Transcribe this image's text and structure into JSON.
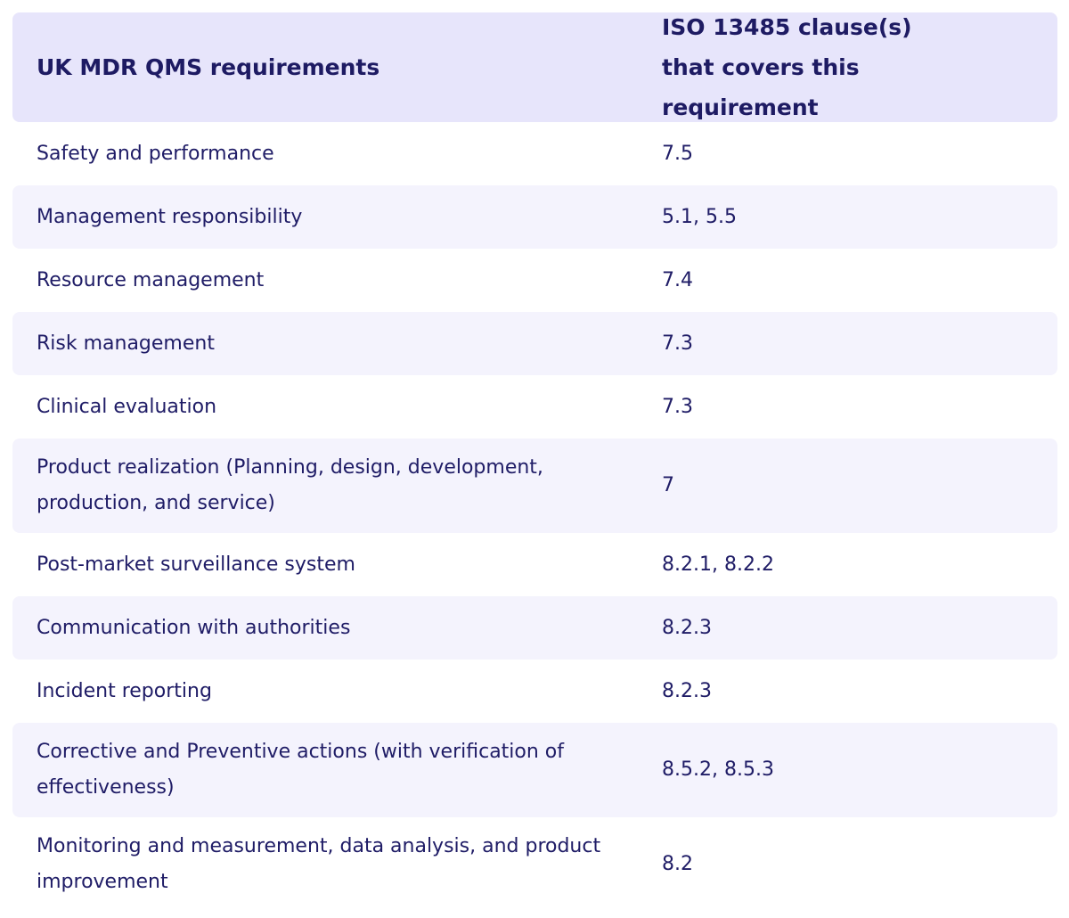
{
  "table": {
    "headers": {
      "requirement": "UK MDR QMS requirements",
      "clause": "ISO 13485 clause(s) that covers this requirement"
    },
    "rows": [
      {
        "requirement": "Safety and performance",
        "clause": "7.5"
      },
      {
        "requirement": "Management responsibility",
        "clause": "5.1, 5.5"
      },
      {
        "requirement": "Resource management",
        "clause": "7.4"
      },
      {
        "requirement": "Risk management",
        "clause": "7.3"
      },
      {
        "requirement": "Clinical evaluation",
        "clause": "7.3"
      },
      {
        "requirement": "Product realization (Planning, design, development, production, and service)",
        "clause": "7"
      },
      {
        "requirement": "Post-market surveillance system",
        "clause": "8.2.1, 8.2.2"
      },
      {
        "requirement": "Communication with authorities",
        "clause": "8.2.3"
      },
      {
        "requirement": "Incident reporting",
        "clause": "8.2.3"
      },
      {
        "requirement": "Corrective and Preventive actions (with verification of effectiveness)",
        "clause": "8.5.2, 8.5.3"
      },
      {
        "requirement": "Monitoring and measurement, data analysis, and product improvement",
        "clause": "8.2"
      }
    ]
  }
}
